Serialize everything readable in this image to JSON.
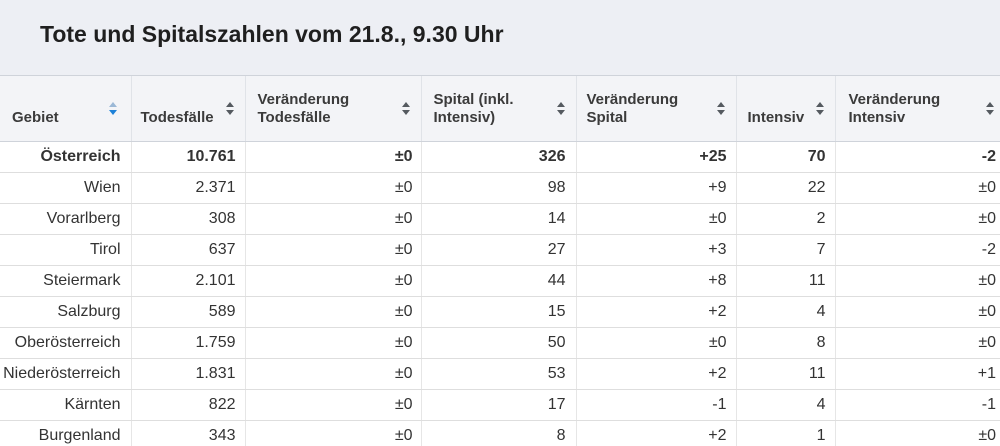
{
  "title": "Tote und Spitalszahlen vom 21.8., 9.30 Uhr",
  "table": {
    "columns": [
      {
        "label": "Gebiet",
        "sort_active": true
      },
      {
        "label": "Todesfälle",
        "sort_active": false
      },
      {
        "label": "Veränderung Todesfälle",
        "sort_active": false
      },
      {
        "label": "Spital (inkl. Intensiv)",
        "sort_active": false
      },
      {
        "label": "Veränderung Spital",
        "sort_active": false
      },
      {
        "label": "Intensiv",
        "sort_active": false
      },
      {
        "label": "Veränderung Intensiv",
        "sort_active": false
      }
    ],
    "rows": [
      {
        "gebiet": "Österreich",
        "todesfaelle": "10.761",
        "veraenderung_todesfaelle": "±0",
        "spital": "326",
        "veraenderung_spital": "+25",
        "intensiv": "70",
        "veraenderung_intensiv": "-2"
      },
      {
        "gebiet": "Wien",
        "todesfaelle": "2.371",
        "veraenderung_todesfaelle": "±0",
        "spital": "98",
        "veraenderung_spital": "+9",
        "intensiv": "22",
        "veraenderung_intensiv": "±0"
      },
      {
        "gebiet": "Vorarlberg",
        "todesfaelle": "308",
        "veraenderung_todesfaelle": "±0",
        "spital": "14",
        "veraenderung_spital": "±0",
        "intensiv": "2",
        "veraenderung_intensiv": "±0"
      },
      {
        "gebiet": "Tirol",
        "todesfaelle": "637",
        "veraenderung_todesfaelle": "±0",
        "spital": "27",
        "veraenderung_spital": "+3",
        "intensiv": "7",
        "veraenderung_intensiv": "-2"
      },
      {
        "gebiet": "Steiermark",
        "todesfaelle": "2.101",
        "veraenderung_todesfaelle": "±0",
        "spital": "44",
        "veraenderung_spital": "+8",
        "intensiv": "11",
        "veraenderung_intensiv": "±0"
      },
      {
        "gebiet": "Salzburg",
        "todesfaelle": "589",
        "veraenderung_todesfaelle": "±0",
        "spital": "15",
        "veraenderung_spital": "+2",
        "intensiv": "4",
        "veraenderung_intensiv": "±0"
      },
      {
        "gebiet": "Oberösterreich",
        "todesfaelle": "1.759",
        "veraenderung_todesfaelle": "±0",
        "spital": "50",
        "veraenderung_spital": "±0",
        "intensiv": "8",
        "veraenderung_intensiv": "±0"
      },
      {
        "gebiet": "Niederösterreich",
        "todesfaelle": "1.831",
        "veraenderung_todesfaelle": "±0",
        "spital": "53",
        "veraenderung_spital": "+2",
        "intensiv": "11",
        "veraenderung_intensiv": "+1"
      },
      {
        "gebiet": "Kärnten",
        "todesfaelle": "822",
        "veraenderung_todesfaelle": "±0",
        "spital": "17",
        "veraenderung_spital": "-1",
        "intensiv": "4",
        "veraenderung_intensiv": "-1"
      },
      {
        "gebiet": "Burgenland",
        "todesfaelle": "343",
        "veraenderung_todesfaelle": "±0",
        "spital": "8",
        "veraenderung_spital": "+2",
        "intensiv": "1",
        "veraenderung_intensiv": "±0"
      }
    ]
  },
  "icons": {
    "sort": "sort-arrows-icon"
  },
  "colors": {
    "title_background": "#edeff4",
    "header_background": "#f3f4f7",
    "sort_active": "#1d81d8",
    "text": "#333333"
  }
}
